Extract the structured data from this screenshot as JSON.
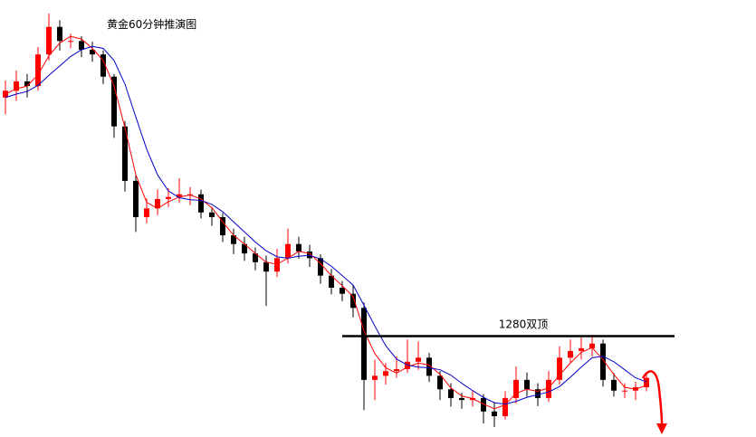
{
  "chart_data": {
    "type": "candlestick",
    "title": "黄金60分钟推演图",
    "candles": [
      [
        1315.5,
        1318,
        1313,
        1316.5
      ],
      [
        1316.5,
        1319.5,
        1315,
        1317.9
      ],
      [
        1317.9,
        1319,
        1315.5,
        1317.2
      ],
      [
        1317.2,
        1323,
        1316.5,
        1321.9
      ],
      [
        1321.9,
        1328,
        1321,
        1326.0
      ],
      [
        1326.0,
        1327,
        1322.5,
        1323.9
      ],
      [
        1323.9,
        1325,
        1322.8,
        1323.9
      ],
      [
        1323.9,
        1324.6,
        1321.5,
        1322.6
      ],
      [
        1322.6,
        1323.8,
        1320.8,
        1321.9
      ],
      [
        1321.9,
        1322.5,
        1317.5,
        1318.6
      ],
      [
        1318.6,
        1319,
        1309.5,
        1311.2
      ],
      [
        1311.2,
        1312,
        1301.5,
        1303.1
      ],
      [
        1303.1,
        1304,
        1295.5,
        1297.7
      ],
      [
        1297.7,
        1300.5,
        1296.8,
        1299.0
      ],
      [
        1299.0,
        1301.8,
        1298,
        1300.4
      ],
      [
        1300.4,
        1302,
        1299.2,
        1300.7
      ],
      [
        1300.7,
        1303.5,
        1299.8,
        1301.1
      ],
      [
        1301.1,
        1302.2,
        1299.5,
        1301.1
      ],
      [
        1301.1,
        1301.8,
        1297.5,
        1298.4
      ],
      [
        1298.4,
        1299.2,
        1296.4,
        1297.7
      ],
      [
        1297.7,
        1298.3,
        1294,
        1295.0
      ],
      [
        1295.0,
        1296,
        1292.2,
        1293.7
      ],
      [
        1293.7,
        1294.8,
        1291.2,
        1292.3
      ],
      [
        1292.3,
        1293.2,
        1289.8,
        1291.0
      ],
      [
        1291.0,
        1292,
        1284.5,
        1289.6
      ],
      [
        1289.6,
        1293,
        1288.8,
        1291.6
      ],
      [
        1291.6,
        1296,
        1290.8,
        1293.7
      ],
      [
        1293.7,
        1294.8,
        1291.5,
        1292.6
      ],
      [
        1292.6,
        1293.6,
        1290.3,
        1291.6
      ],
      [
        1291.6,
        1292.2,
        1287.8,
        1289.0
      ],
      [
        1289.0,
        1290,
        1286.2,
        1287.2
      ],
      [
        1287.2,
        1288.2,
        1285.2,
        1286.3
      ],
      [
        1286.3,
        1287.6,
        1282.8,
        1284.2
      ],
      [
        1284.2,
        1285,
        1269,
        1273.5
      ],
      [
        1273.5,
        1276.5,
        1270.5,
        1274.1
      ],
      [
        1274.1,
        1276,
        1272.8,
        1274.8
      ],
      [
        1274.8,
        1277,
        1273.8,
        1275.1
      ],
      [
        1275.1,
        1279.5,
        1274.5,
        1276.2
      ],
      [
        1276.2,
        1279.2,
        1275,
        1276.8
      ],
      [
        1276.8,
        1277.5,
        1273.2,
        1274.1
      ],
      [
        1274.1,
        1274.8,
        1270.5,
        1272.1
      ],
      [
        1272.1,
        1273,
        1269.5,
        1270.8
      ],
      [
        1270.8,
        1271.6,
        1269.2,
        1270.5
      ],
      [
        1270.5,
        1271.8,
        1269.5,
        1270.8
      ],
      [
        1270.8,
        1271.4,
        1267,
        1268.8
      ],
      [
        1268.8,
        1270.2,
        1266.5,
        1268.1
      ],
      [
        1268.1,
        1271.8,
        1267.6,
        1270.8
      ],
      [
        1270.8,
        1275.5,
        1270,
        1273.5
      ],
      [
        1273.5,
        1274.6,
        1271,
        1272.1
      ],
      [
        1272.1,
        1273,
        1269.6,
        1270.8
      ],
      [
        1270.8,
        1274.8,
        1270.2,
        1273.5
      ],
      [
        1273.5,
        1278.5,
        1272.8,
        1276.8
      ],
      [
        1276.8,
        1279.5,
        1276,
        1277.8
      ],
      [
        1277.8,
        1279.8,
        1276.5,
        1278.2
      ],
      [
        1278.2,
        1280.2,
        1277,
        1278.9
      ],
      [
        1278.9,
        1279.5,
        1272.5,
        1273.5
      ],
      [
        1273.5,
        1274.5,
        1271,
        1271.9
      ],
      [
        1271.9,
        1273,
        1270.8,
        1271.9
      ],
      [
        1271.9,
        1273.2,
        1270.5,
        1272.4
      ],
      [
        1272.4,
        1274.5,
        1271.8,
        1273.8
      ]
    ],
    "up_color": "#ff0000",
    "down_color": "#000000",
    "series": [
      {
        "color": "#ff0000",
        "values": [
          1316.0,
          1316.8,
          1317.2,
          1318.9,
          1321.7,
          1323.6,
          1324.6,
          1324.2,
          1322.8,
          1321.0,
          1317.2,
          1311.0,
          1304.0,
          1299.9,
          1299.0,
          1300.0,
          1300.7,
          1301.0,
          1300.4,
          1299.1,
          1297.0,
          1295.0,
          1293.7,
          1292.3,
          1291.0,
          1290.7,
          1291.6,
          1292.6,
          1292.3,
          1290.8,
          1289.0,
          1287.5,
          1285.9,
          1280.8,
          1277.4,
          1275.3,
          1274.5,
          1275.4,
          1276.0,
          1275.7,
          1274.3,
          1272.3,
          1271.1,
          1270.7,
          1269.9,
          1269.2,
          1269.8,
          1271.5,
          1272.1,
          1271.8,
          1272.3,
          1274.2,
          1276.0,
          1277.6,
          1278.3,
          1276.5,
          1274.3,
          1272.4,
          1272.1,
          1272.7
        ]
      },
      {
        "color": "#0000cc",
        "values": [
          1315.5,
          1316.0,
          1316.4,
          1317.3,
          1318.8,
          1320.2,
          1321.6,
          1322.6,
          1323.1,
          1322.8,
          1321.0,
          1317.5,
          1312.6,
          1307.8,
          1304.0,
          1301.6,
          1300.6,
          1300.3,
          1300.2,
          1299.6,
          1298.5,
          1297.0,
          1295.5,
          1294.0,
          1292.7,
          1291.8,
          1291.6,
          1291.9,
          1292.0,
          1291.5,
          1290.4,
          1289.0,
          1287.6,
          1284.6,
          1281.5,
          1278.6,
          1276.6,
          1275.7,
          1275.4,
          1275.3,
          1275.0,
          1274.2,
          1273.0,
          1271.9,
          1270.9,
          1270.1,
          1269.9,
          1270.3,
          1270.9,
          1271.3,
          1271.7,
          1272.5,
          1273.9,
          1275.4,
          1276.8,
          1277.0,
          1276.2,
          1275.0,
          1273.8,
          1273.2
        ]
      }
    ],
    "ylim": [
      1265,
      1330
    ],
    "annotations": [
      {
        "text": "1280双顶",
        "value": 1280
      }
    ]
  }
}
